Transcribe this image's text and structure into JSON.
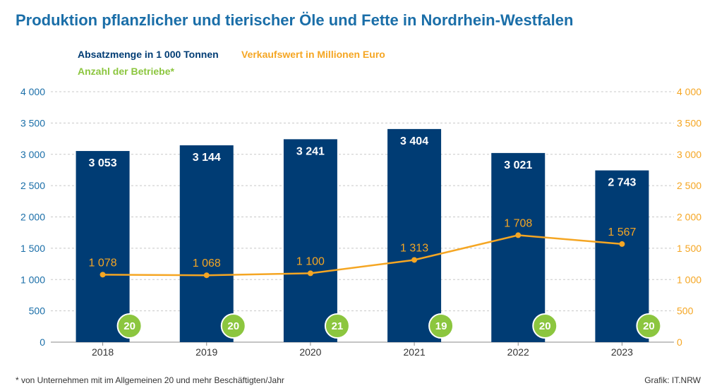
{
  "title": "Produktion pflanzlicher und tierischer Öle und Fette in Nordrhein-Westfalen",
  "legend": {
    "bars": "Absatzmenge in 1 000 Tonnen",
    "line": "Verkaufswert in Millionen Euro",
    "badges": "Anzahl der Betriebe*"
  },
  "footnote": "* von Unternehmen mit im Allgemeinen 20 und mehr Beschäftigten/Jahr",
  "credit": "Grafik: IT.NRW",
  "colors": {
    "title": "#1a6ea8",
    "bars": "#003c74",
    "line": "#f5a623",
    "badges": "#8cc63f",
    "axis": "#1a6ea8",
    "grid": "#c8c8c8"
  },
  "chart_data": {
    "type": "bar",
    "categories": [
      "2018",
      "2019",
      "2020",
      "2021",
      "2022",
      "2023"
    ],
    "series": [
      {
        "name": "Absatzmenge in 1 000 Tonnen",
        "type": "bar",
        "values": [
          3053,
          3144,
          3241,
          3404,
          3021,
          2743
        ],
        "labels": [
          "3 053",
          "3 144",
          "3 241",
          "3 404",
          "3 021",
          "2 743"
        ]
      },
      {
        "name": "Verkaufswert in Millionen Euro",
        "type": "line",
        "values": [
          1078,
          1068,
          1100,
          1313,
          1708,
          1567
        ],
        "labels": [
          "1 078",
          "1 068",
          "1 100",
          "1 313",
          "1 708",
          "1 567"
        ]
      },
      {
        "name": "Anzahl der Betriebe*",
        "type": "badge",
        "values": [
          20,
          20,
          21,
          19,
          20,
          20
        ]
      }
    ],
    "ylim": [
      0,
      4000
    ],
    "yticks": [
      0,
      500,
      1000,
      1500,
      2000,
      2500,
      3000,
      3500,
      4000
    ],
    "ytick_labels": [
      "0",
      "500",
      "1 000",
      "1 500",
      "2 000",
      "2 500",
      "3 000",
      "3 500",
      "4 000"
    ],
    "y2ticks": [
      0,
      500,
      1000,
      1500,
      2000,
      2500,
      3000,
      3500,
      4000
    ],
    "y2tick_labels": [
      "0",
      "500",
      "1 000",
      "1 500",
      "2 000",
      "2 500",
      "3 000",
      "3 500",
      "4 000"
    ],
    "grid": true,
    "legend_position": "top-left"
  }
}
